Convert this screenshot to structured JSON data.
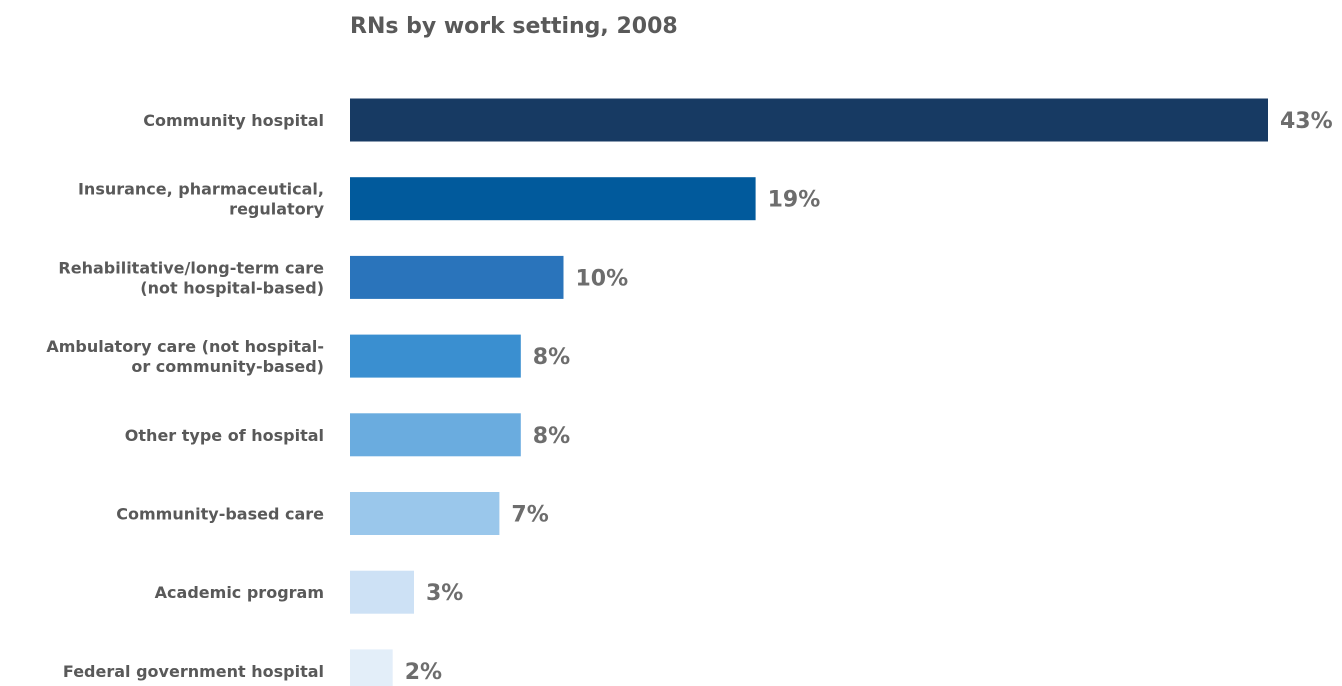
{
  "chart_data": {
    "type": "bar",
    "orientation": "horizontal",
    "title": "RNs by work setting, 2008",
    "xlabel": "",
    "ylabel": "",
    "xlim": [
      0,
      43
    ],
    "grid": false,
    "legend": "none",
    "categories": [
      "Community hospital",
      "Insurance, pharmaceutical, regulatory",
      "Rehabilitative/long-term care (not hospital-based)",
      "Ambulatory care (not hospital- or community-based)",
      "Other type of hospital",
      "Community-based care",
      "Academic program",
      "Federal government hospital"
    ],
    "category_lines": [
      [
        "Community hospital"
      ],
      [
        "Insurance, pharmaceutical,",
        "regulatory"
      ],
      [
        "Rehabilitative/long-term care",
        "(not hospital-based)"
      ],
      [
        "Ambulatory care (not hospital-",
        "or community-based)"
      ],
      [
        "Other type of hospital"
      ],
      [
        "Community-based care"
      ],
      [
        "Academic program"
      ],
      [
        "Federal government hospital"
      ]
    ],
    "values": [
      43,
      19,
      10,
      8,
      8,
      7,
      3,
      2
    ],
    "value_labels": [
      "43%",
      "19%",
      "10%",
      "8%",
      "8%",
      "7%",
      "3%",
      "2%"
    ],
    "colors": [
      "#173a63",
      "#015a9c",
      "#2a74bb",
      "#3a8fd0",
      "#6aacdf",
      "#9ac7eb",
      "#cde1f5",
      "#e3eef9"
    ]
  }
}
